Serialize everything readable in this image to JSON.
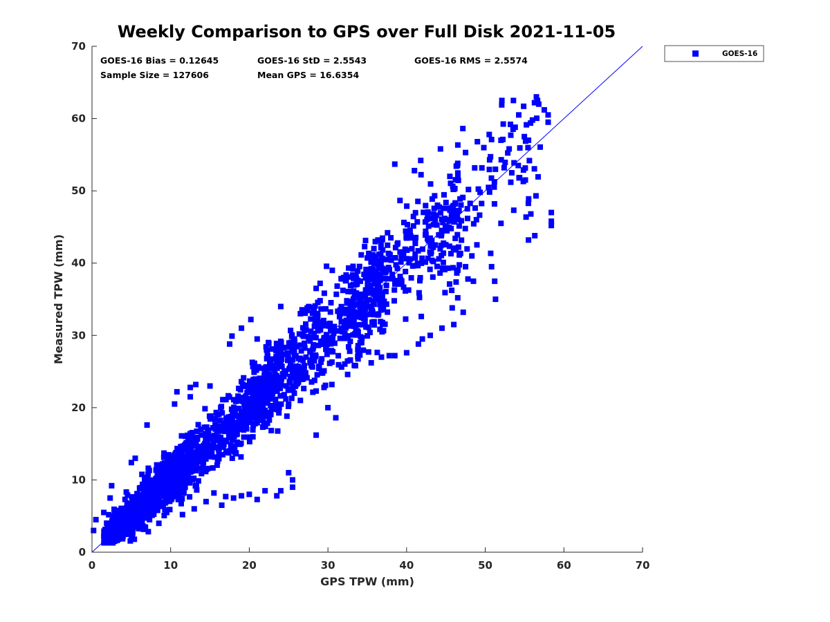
{
  "chart_data": {
    "type": "scatter",
    "title": "Weekly Comparison to GPS over Full Disk 2021-11-05",
    "xlabel": "GPS TPW (mm)",
    "ylabel": "Measured TPW (mm)",
    "xlim": [
      0,
      70
    ],
    "ylim": [
      0,
      70
    ],
    "xticks": [
      0,
      10,
      20,
      30,
      40,
      50,
      60,
      70
    ],
    "yticks": [
      0,
      10,
      20,
      30,
      40,
      50,
      60,
      70
    ],
    "grid": false,
    "legend_position": "top-right outside",
    "reference_line": {
      "label": "1:1 line",
      "x": [
        0,
        70
      ],
      "y": [
        0,
        70
      ]
    },
    "stats": [
      [
        "GOES-16 Bias = 0.12645",
        "GOES-16 StD = 2.5543",
        "GOES-16 RMS = 2.5574"
      ],
      [
        "Sample Size = 127606",
        "Mean GPS = 16.6354"
      ]
    ],
    "series": [
      {
        "name": "GOES-16",
        "color": "#0000ff",
        "marker": "square",
        "sample_size": 127606,
        "outlier_points": [
          [
            56.5,
            63.0
          ],
          [
            56.8,
            62.0
          ],
          [
            57.5,
            61.2
          ],
          [
            58.0,
            60.5
          ],
          [
            58.0,
            59.5
          ],
          [
            56.0,
            59.8
          ],
          [
            53.2,
            59.2
          ],
          [
            53.8,
            58.8
          ],
          [
            52.0,
            57.0
          ],
          [
            55.5,
            57.0
          ],
          [
            50.5,
            57.8
          ],
          [
            49.0,
            56.8
          ],
          [
            44.3,
            55.8
          ],
          [
            47.5,
            55.3
          ],
          [
            41.8,
            54.2
          ],
          [
            38.5,
            53.7
          ],
          [
            54.2,
            53.5
          ],
          [
            41.0,
            52.8
          ],
          [
            45.5,
            52.0
          ],
          [
            46.5,
            53.8
          ],
          [
            58.4,
            47.0
          ],
          [
            58.4,
            45.8
          ],
          [
            58.4,
            45.2
          ],
          [
            55.5,
            43.2
          ],
          [
            56.3,
            43.8
          ],
          [
            55.8,
            46.8
          ],
          [
            52.0,
            45.5
          ],
          [
            48.3,
            41.0
          ],
          [
            47.5,
            39.5
          ],
          [
            47.8,
            37.8
          ],
          [
            51.3,
            35.0
          ],
          [
            50.8,
            39.5
          ],
          [
            51.2,
            37.5
          ],
          [
            48.5,
            37.5
          ],
          [
            46.5,
            35.2
          ],
          [
            45.8,
            33.8
          ],
          [
            47.2,
            33.2
          ],
          [
            46.0,
            31.5
          ],
          [
            44.5,
            31.0
          ],
          [
            43.0,
            30.0
          ],
          [
            42.0,
            29.5
          ],
          [
            41.5,
            28.8
          ],
          [
            40.0,
            27.6
          ],
          [
            38.5,
            27.2
          ],
          [
            37.8,
            27.2
          ],
          [
            36.8,
            27.0
          ],
          [
            35.5,
            26.2
          ],
          [
            33.5,
            25.8
          ],
          [
            32.5,
            24.6
          ],
          [
            30.5,
            23.2
          ],
          [
            29.5,
            22.8
          ],
          [
            28.5,
            22.3
          ],
          [
            26.5,
            21.0
          ],
          [
            25.0,
            20.5
          ],
          [
            23.0,
            19.8
          ],
          [
            20.5,
            17.5
          ],
          [
            28.5,
            16.2
          ],
          [
            31.0,
            18.6
          ],
          [
            30.0,
            20.0
          ],
          [
            38.0,
            43.5
          ],
          [
            35.5,
            38.5
          ],
          [
            34.8,
            35.8
          ],
          [
            33.2,
            39.2
          ],
          [
            32.0,
            38.0
          ],
          [
            29.0,
            37.2
          ],
          [
            28.5,
            36.5
          ],
          [
            29.0,
            34.8
          ],
          [
            28.5,
            33.0
          ],
          [
            24.0,
            34.0
          ],
          [
            26.5,
            33.0
          ],
          [
            20.2,
            32.2
          ],
          [
            19.0,
            31.0
          ],
          [
            21.0,
            29.5
          ],
          [
            17.8,
            29.9
          ],
          [
            17.5,
            28.8
          ],
          [
            15.0,
            23.0
          ],
          [
            13.2,
            23.2
          ],
          [
            12.5,
            22.8
          ],
          [
            10.8,
            22.2
          ],
          [
            12.5,
            21.5
          ],
          [
            10.5,
            20.5
          ],
          [
            7.0,
            17.6
          ],
          [
            5.5,
            13.0
          ],
          [
            5.0,
            12.4
          ],
          [
            2.5,
            9.2
          ],
          [
            2.3,
            7.5
          ],
          [
            1.5,
            5.5
          ],
          [
            0.5,
            4.5
          ],
          [
            0.2,
            3.0
          ],
          [
            1.5,
            2.2
          ],
          [
            2.0,
            1.5
          ],
          [
            25.0,
            11.0
          ],
          [
            25.5,
            10.0
          ],
          [
            25.5,
            9.0
          ],
          [
            24.0,
            8.5
          ],
          [
            23.5,
            7.8
          ],
          [
            22.0,
            8.5
          ],
          [
            21.0,
            7.3
          ],
          [
            20.0,
            8.0
          ],
          [
            19.0,
            7.8
          ],
          [
            18.0,
            7.5
          ],
          [
            17.0,
            7.7
          ],
          [
            15.5,
            8.2
          ],
          [
            16.5,
            6.5
          ],
          [
            14.5,
            7.0
          ],
          [
            13.0,
            6.0
          ],
          [
            11.5,
            5.2
          ],
          [
            9.5,
            5.5
          ],
          [
            8.5,
            4.0
          ],
          [
            6.5,
            3.6
          ],
          [
            5.0,
            2.7
          ],
          [
            4.0,
            2.5
          ],
          [
            3.0,
            1.8
          ]
        ]
      }
    ]
  },
  "legend": {
    "label": "GOES-16",
    "color": "#0000ff"
  }
}
